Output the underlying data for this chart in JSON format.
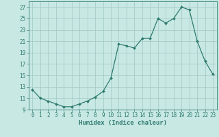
{
  "x": [
    0,
    1,
    2,
    3,
    4,
    5,
    6,
    7,
    8,
    9,
    10,
    11,
    12,
    13,
    14,
    15,
    16,
    17,
    18,
    19,
    20,
    21,
    22,
    23
  ],
  "y": [
    12.5,
    11.0,
    10.5,
    10.0,
    9.5,
    9.5,
    10.0,
    10.5,
    11.2,
    12.2,
    14.5,
    20.5,
    20.2,
    19.8,
    21.5,
    21.5,
    25.0,
    24.2,
    25.0,
    27.0,
    26.5,
    21.0,
    17.5,
    15.2
  ],
  "line_color": "#2d7a6e",
  "bg_color": "#c8e8e4",
  "grid_color": "#a0c8c4",
  "plot_bg": "#c8e8e4",
  "xlabel": "Humidex (Indice chaleur)",
  "xlim": [
    -0.5,
    23.5
  ],
  "ylim": [
    9,
    28
  ],
  "yticks": [
    9,
    11,
    13,
    15,
    17,
    19,
    21,
    23,
    25,
    27
  ],
  "xticks": [
    0,
    1,
    2,
    3,
    4,
    5,
    6,
    7,
    8,
    9,
    10,
    11,
    12,
    13,
    14,
    15,
    16,
    17,
    18,
    19,
    20,
    21,
    22,
    23
  ],
  "tick_fontsize": 5.5,
  "label_fontsize": 6.5
}
